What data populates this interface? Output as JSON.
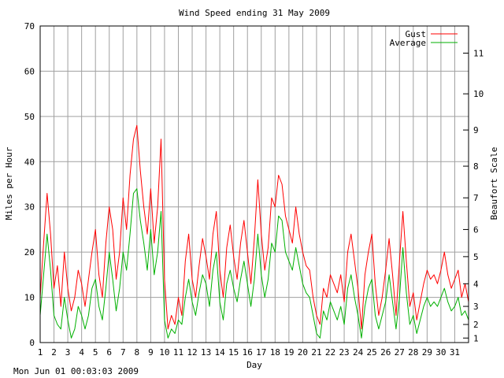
{
  "footer": {
    "timestamp": "Mon Jun 01 00:03:03 2009"
  },
  "chart_data": {
    "type": "line",
    "title": "Wind Speed ending 31 May 2009",
    "xlabel": "Day",
    "ylabel": "Miles per Hour",
    "y2label": "Beaufort Scale",
    "xlim": [
      1,
      32
    ],
    "ylim": [
      0,
      70
    ],
    "grid": true,
    "legend_position": "top-right",
    "x_ticks": [
      "1",
      "2",
      "3",
      "4",
      "5",
      "6",
      "7",
      "8",
      "9",
      "10",
      "11",
      "12",
      "13",
      "14",
      "15",
      "16",
      "17",
      "18",
      "19",
      "20",
      "21",
      "22",
      "23",
      "24",
      "25",
      "26",
      "27",
      "28",
      "29",
      "30",
      "31"
    ],
    "y_ticks": [
      "0",
      "10",
      "20",
      "30",
      "40",
      "50",
      "60",
      "70"
    ],
    "beaufort_ticks": [
      {
        "label": "1",
        "mph": 1
      },
      {
        "label": "2",
        "mph": 4
      },
      {
        "label": "3",
        "mph": 8
      },
      {
        "label": "4",
        "mph": 13
      },
      {
        "label": "5",
        "mph": 19
      },
      {
        "label": "6",
        "mph": 25
      },
      {
        "label": "7",
        "mph": 32
      },
      {
        "label": "8",
        "mph": 39
      },
      {
        "label": "9",
        "mph": 47
      },
      {
        "label": "10",
        "mph": 55
      },
      {
        "label": "11",
        "mph": 64
      }
    ],
    "series": [
      {
        "name": "Gust",
        "color": "#ff0000",
        "x": [
          1,
          1.25,
          1.5,
          1.75,
          2,
          2.25,
          2.5,
          2.75,
          3,
          3.25,
          3.5,
          3.75,
          4,
          4.25,
          4.5,
          4.75,
          5,
          5.25,
          5.5,
          5.75,
          6,
          6.25,
          6.5,
          6.75,
          7,
          7.25,
          7.5,
          7.75,
          8,
          8.25,
          8.5,
          8.75,
          9,
          9.25,
          9.5,
          9.75,
          10,
          10.25,
          10.5,
          10.75,
          11,
          11.25,
          11.5,
          11.75,
          12,
          12.25,
          12.5,
          12.75,
          13,
          13.25,
          13.5,
          13.75,
          14,
          14.25,
          14.5,
          14.75,
          15,
          15.25,
          15.5,
          15.75,
          16,
          16.25,
          16.5,
          16.75,
          17,
          17.25,
          17.5,
          17.75,
          18,
          18.25,
          18.5,
          18.75,
          19,
          19.25,
          19.5,
          19.75,
          20,
          20.25,
          20.5,
          20.75,
          21,
          21.25,
          21.5,
          21.75,
          22,
          22.25,
          22.5,
          22.75,
          23,
          23.25,
          23.5,
          23.75,
          24,
          24.25,
          24.5,
          24.75,
          25,
          25.25,
          25.5,
          25.75,
          26,
          26.25,
          26.5,
          26.75,
          27,
          27.25,
          27.5,
          27.75,
          28,
          28.25,
          28.5,
          28.75,
          29,
          29.25,
          29.5,
          29.75,
          30,
          30.25,
          30.5,
          30.75,
          31,
          31.25,
          31.5,
          31.75,
          32
        ],
        "values": [
          10,
          22,
          33,
          24,
          12,
          17,
          8,
          20,
          12,
          7,
          10,
          16,
          13,
          8,
          14,
          20,
          25,
          15,
          10,
          22,
          30,
          25,
          14,
          20,
          32,
          25,
          37,
          45,
          48,
          38,
          30,
          24,
          34,
          22,
          30,
          45,
          14,
          3,
          6,
          4,
          10,
          6,
          18,
          24,
          14,
          10,
          17,
          23,
          19,
          14,
          24,
          29,
          16,
          10,
          21,
          26,
          19,
          14,
          22,
          27,
          20,
          13,
          23,
          36,
          24,
          16,
          21,
          32,
          30,
          37,
          35,
          28,
          25,
          22,
          30,
          24,
          20,
          17,
          16,
          10,
          6,
          4,
          12,
          10,
          15,
          13,
          11,
          15,
          9,
          20,
          24,
          18,
          12,
          3,
          15,
          20,
          24,
          13,
          6,
          10,
          16,
          23,
          15,
          6,
          18,
          29,
          18,
          8,
          11,
          5,
          9,
          13,
          16,
          14,
          15,
          13,
          16,
          20,
          15,
          12,
          14,
          16,
          10,
          13,
          9
        ]
      },
      {
        "name": "Average",
        "color": "#00b000",
        "x": [
          1,
          1.25,
          1.5,
          1.75,
          2,
          2.25,
          2.5,
          2.75,
          3,
          3.25,
          3.5,
          3.75,
          4,
          4.25,
          4.5,
          4.75,
          5,
          5.25,
          5.5,
          5.75,
          6,
          6.25,
          6.5,
          6.75,
          7,
          7.25,
          7.5,
          7.75,
          8,
          8.25,
          8.5,
          8.75,
          9,
          9.25,
          9.5,
          9.75,
          10,
          10.25,
          10.5,
          10.75,
          11,
          11.25,
          11.5,
          11.75,
          12,
          12.25,
          12.5,
          12.75,
          13,
          13.25,
          13.5,
          13.75,
          14,
          14.25,
          14.5,
          14.75,
          15,
          15.25,
          15.5,
          15.75,
          16,
          16.25,
          16.5,
          16.75,
          17,
          17.25,
          17.5,
          17.75,
          18,
          18.25,
          18.5,
          18.75,
          19,
          19.25,
          19.5,
          19.75,
          20,
          20.25,
          20.5,
          20.75,
          21,
          21.25,
          21.5,
          21.75,
          22,
          22.25,
          22.5,
          22.75,
          23,
          23.25,
          23.5,
          23.75,
          24,
          24.25,
          24.5,
          24.75,
          25,
          25.25,
          25.5,
          25.75,
          26,
          26.25,
          26.5,
          26.75,
          27,
          27.25,
          27.5,
          27.75,
          28,
          28.25,
          28.5,
          28.75,
          29,
          29.25,
          29.5,
          29.75,
          30,
          30.25,
          30.5,
          30.75,
          31,
          31.25,
          31.5,
          31.75,
          32
        ],
        "values": [
          6,
          15,
          24,
          16,
          6,
          4,
          3,
          10,
          5,
          1,
          3,
          8,
          6,
          3,
          6,
          12,
          14,
          8,
          5,
          12,
          20,
          14,
          7,
          12,
          20,
          16,
          24,
          33,
          34,
          27,
          22,
          16,
          25,
          15,
          20,
          29,
          5,
          1,
          3,
          2,
          5,
          4,
          10,
          14,
          9,
          6,
          11,
          15,
          13,
          8,
          16,
          20,
          9,
          5,
          13,
          16,
          12,
          9,
          14,
          18,
          13,
          8,
          14,
          24,
          15,
          10,
          14,
          22,
          20,
          28,
          27,
          20,
          18,
          16,
          21,
          17,
          13,
          11,
          10,
          6,
          2,
          1,
          7,
          5,
          9,
          7,
          5,
          8,
          4,
          12,
          15,
          10,
          6,
          1,
          8,
          12,
          14,
          6,
          3,
          6,
          9,
          15,
          9,
          3,
          10,
          21,
          11,
          4,
          6,
          2,
          5,
          8,
          10,
          8,
          9,
          8,
          10,
          12,
          9,
          7,
          8,
          10,
          6,
          7,
          5
        ]
      }
    ]
  }
}
